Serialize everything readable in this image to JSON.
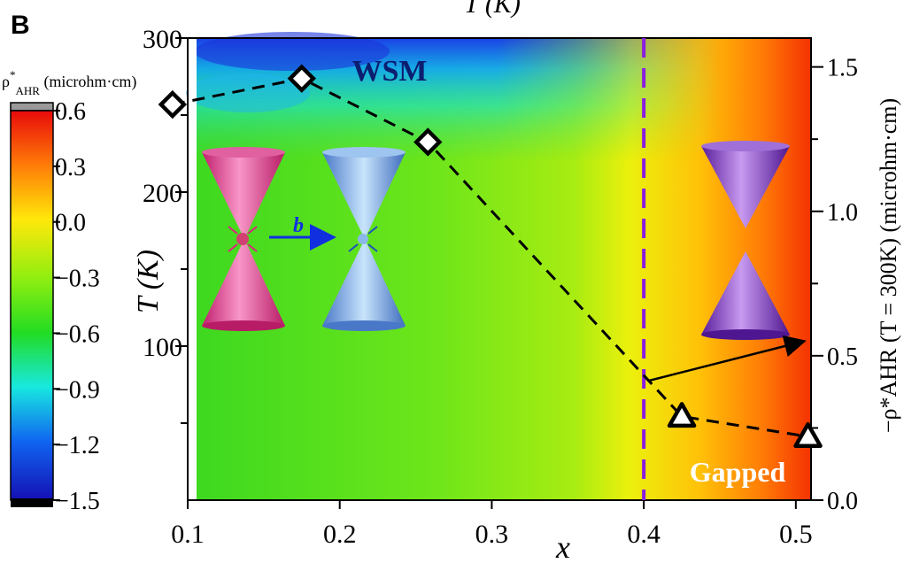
{
  "panel_label": "B",
  "top_axis_label": "T (K)",
  "colorbar": {
    "title": "ρ*AHR (microhm·cm)",
    "ticks": [
      "0.6",
      "0.3",
      "0.0",
      "−0.3",
      "−0.6",
      "−0.9",
      "−1.2",
      "−1.5"
    ]
  },
  "chart_data": {
    "type": "heatmap",
    "xlabel": "x",
    "ylabel": "T (K)",
    "y2label": "−ρ*AHR (T = 300K) (microhm·cm)",
    "xlim": [
      0.1,
      0.51
    ],
    "ylim": [
      0,
      300
    ],
    "y2lim": [
      0.0,
      1.6
    ],
    "x_ticks": [
      "0.1",
      "0.2",
      "0.3",
      "0.4",
      "0.5"
    ],
    "y_ticks": [
      "100",
      "200",
      "300"
    ],
    "y2_ticks": [
      "0.0",
      "0.5",
      "1.0",
      "1.5"
    ],
    "colorbar_range": [
      -1.5,
      0.6
    ],
    "phase_boundary_x": 0.4,
    "series": [
      {
        "marker": "diamond",
        "x": [
          0.09,
          0.175,
          0.258
        ],
        "y": [
          1.37,
          1.46,
          1.24
        ]
      },
      {
        "marker": "triangle",
        "x": [
          0.425,
          0.508
        ],
        "y": [
          0.29,
          0.22
        ]
      }
    ],
    "phase_labels": [
      "WSM",
      "Gapped"
    ],
    "inset_label": "b"
  }
}
